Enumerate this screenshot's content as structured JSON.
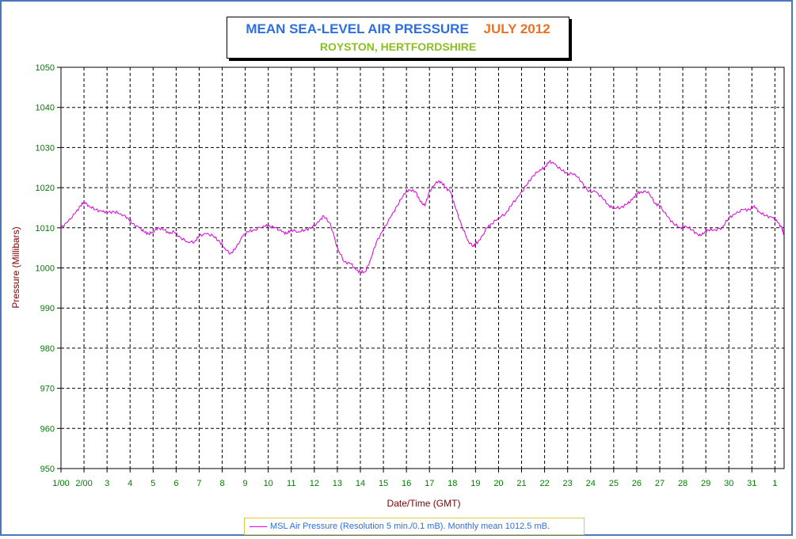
{
  "title": {
    "main": "MEAN SEA-LEVEL AIR PRESSURE",
    "period": "JULY 2012",
    "subtitle": "ROYSTON, HERTFORDSHIRE"
  },
  "legend": {
    "label": "MSL Air Pressure (Resolution 5 min./0.1 mB). Monthly mean 1012.5 mB."
  },
  "colors": {
    "line": "#e000e0",
    "axis_text": "#008000",
    "axis_title": "#800000",
    "title_main": "#2e6fe0",
    "title_period": "#f07020",
    "subtitle": "#8cc020",
    "border": "#4a78b8"
  },
  "chart_data": {
    "type": "line",
    "xlabel": "Date/Time (GMT)",
    "ylabel": "Pressure (Millibars)",
    "ylim": [
      950,
      1050
    ],
    "yticks": [
      "950",
      "960",
      "970",
      "980",
      "990",
      "1000",
      "1010",
      "1020",
      "1030",
      "1040",
      "1050"
    ],
    "xlim": [
      1,
      32.4
    ],
    "xticks": [
      {
        "pos": 1,
        "label": "1/00"
      },
      {
        "pos": 2,
        "label": "2/00"
      },
      {
        "pos": 3,
        "label": "3"
      },
      {
        "pos": 4,
        "label": "4"
      },
      {
        "pos": 5,
        "label": "5"
      },
      {
        "pos": 6,
        "label": "6"
      },
      {
        "pos": 7,
        "label": "7"
      },
      {
        "pos": 8,
        "label": "8"
      },
      {
        "pos": 9,
        "label": "9"
      },
      {
        "pos": 10,
        "label": "10"
      },
      {
        "pos": 11,
        "label": "11"
      },
      {
        "pos": 12,
        "label": "12"
      },
      {
        "pos": 13,
        "label": "13"
      },
      {
        "pos": 14,
        "label": "14"
      },
      {
        "pos": 15,
        "label": "15"
      },
      {
        "pos": 16,
        "label": "16"
      },
      {
        "pos": 17,
        "label": "17"
      },
      {
        "pos": 18,
        "label": "18"
      },
      {
        "pos": 19,
        "label": "19"
      },
      {
        "pos": 20,
        "label": "20"
      },
      {
        "pos": 21,
        "label": "21"
      },
      {
        "pos": 22,
        "label": "22"
      },
      {
        "pos": 23,
        "label": "23"
      },
      {
        "pos": 24,
        "label": "24"
      },
      {
        "pos": 25,
        "label": "25"
      },
      {
        "pos": 26,
        "label": "26"
      },
      {
        "pos": 27,
        "label": "27"
      },
      {
        "pos": 28,
        "label": "28"
      },
      {
        "pos": 29,
        "label": "29"
      },
      {
        "pos": 30,
        "label": "30"
      },
      {
        "pos": 31,
        "label": "31"
      },
      {
        "pos": 32,
        "label": "1"
      }
    ],
    "grid": true,
    "series": [
      {
        "name": "MSL Air Pressure (Resolution 5 min./0.1 mB). Monthly mean 1012.5 mB.",
        "x": [
          1.0,
          1.3,
          1.6,
          1.85,
          2.0,
          2.2,
          2.5,
          2.8,
          3.0,
          3.3,
          3.6,
          3.9,
          4.1,
          4.4,
          4.6,
          4.8,
          5.0,
          5.2,
          5.5,
          5.7,
          5.9,
          6.2,
          6.5,
          6.8,
          7.0,
          7.3,
          7.6,
          7.9,
          8.1,
          8.35,
          8.6,
          8.9,
          9.1,
          9.4,
          9.8,
          10.0,
          10.3,
          10.6,
          10.8,
          11.0,
          11.3,
          11.6,
          11.9,
          12.2,
          12.4,
          12.7,
          13.0,
          13.3,
          13.6,
          13.8,
          14.0,
          14.2,
          14.4,
          14.7,
          15.0,
          15.3,
          15.6,
          15.9,
          16.1,
          16.4,
          16.6,
          16.8,
          17.0,
          17.3,
          17.5,
          17.7,
          17.9,
          18.1,
          18.4,
          18.7,
          18.9,
          19.0,
          19.2,
          19.5,
          19.7,
          20.0,
          20.3,
          20.6,
          20.9,
          21.2,
          21.5,
          21.8,
          22.0,
          22.2,
          22.4,
          22.7,
          23.0,
          23.3,
          23.6,
          23.9,
          24.2,
          24.5,
          24.8,
          25.0,
          25.3,
          25.6,
          25.8,
          26.0,
          26.2,
          26.5,
          26.8,
          27.0,
          27.3,
          27.6,
          27.9,
          28.1,
          28.4,
          28.7,
          28.9,
          29.1,
          29.4,
          29.7,
          30.0,
          30.3,
          30.6,
          30.9,
          31.1,
          31.3,
          31.6,
          31.9,
          32.1,
          32.3,
          32.4
        ],
        "y": [
          1010,
          1011.5,
          1013.5,
          1015.5,
          1016.5,
          1015.5,
          1014.5,
          1014,
          1013.8,
          1014,
          1013.5,
          1012.5,
          1011,
          1010,
          1009,
          1008.5,
          1009,
          1010,
          1009.5,
          1008.5,
          1009,
          1007.5,
          1006.5,
          1006.5,
          1008,
          1008.5,
          1008,
          1006.5,
          1005,
          1003.5,
          1005,
          1008,
          1009,
          1009.5,
          1010.5,
          1010.5,
          1010,
          1009,
          1008.5,
          1009.5,
          1009,
          1009.5,
          1010,
          1011.5,
          1013,
          1011,
          1005,
          1001.5,
          1001,
          999.5,
          999,
          999,
          1001.5,
          1006.5,
          1009.5,
          1012.5,
          1015.5,
          1018.5,
          1019.5,
          1019,
          1016.5,
          1015.5,
          1019,
          1021.5,
          1021.5,
          1020,
          1019,
          1015.5,
          1010.5,
          1006.5,
          1005.5,
          1006,
          1007,
          1010,
          1011,
          1012.5,
          1013.5,
          1016,
          1018,
          1020.5,
          1023,
          1024.5,
          1025,
          1026.5,
          1026,
          1024.5,
          1023.5,
          1023.5,
          1021.5,
          1019,
          1019,
          1017.5,
          1015.5,
          1015,
          1015,
          1016,
          1017,
          1018.5,
          1019,
          1019,
          1016,
          1015.5,
          1013,
          1011,
          1010,
          1010.5,
          1009.5,
          1008,
          1008.5,
          1009.5,
          1009.5,
          1010,
          1012.5,
          1013.5,
          1014.5,
          1014.5,
          1015.5,
          1014,
          1013,
          1012.5,
          1011.5,
          1010,
          1008
        ]
      }
    ]
  }
}
